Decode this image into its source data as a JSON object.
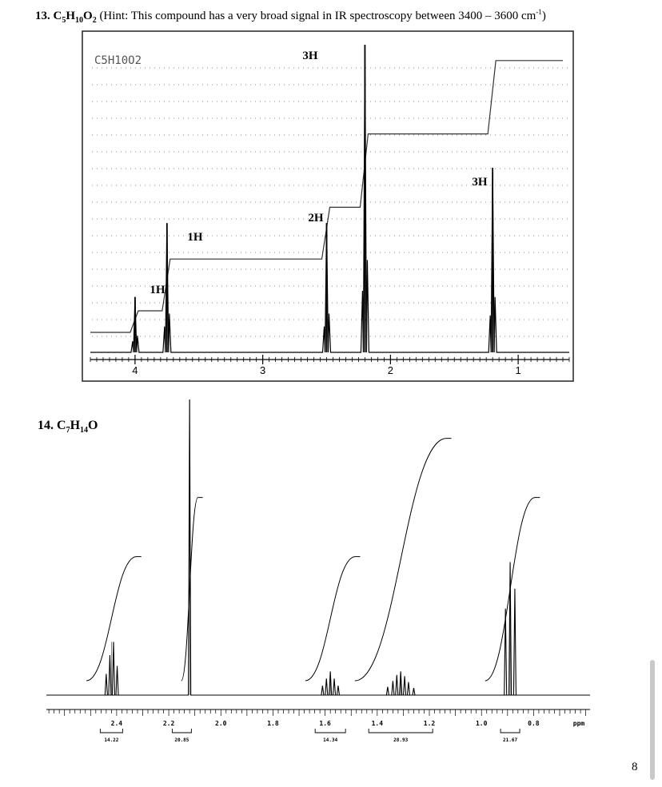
{
  "problem13": {
    "number": "13.",
    "formula_C": "C",
    "formula_C_sub": "5",
    "formula_H": "H",
    "formula_H_sub": "10",
    "formula_O": "O",
    "formula_O_sub": "2",
    "hint_text": " (Hint: This compound has a very broad signal in IR spectroscopy between 3400 – 3600 cm",
    "hint_sup": "-1",
    "hint_end": ")"
  },
  "problem14": {
    "number": "14.",
    "formula_C": "C",
    "formula_C_sub": "7",
    "formula_H": "H",
    "formula_H_sub": "14",
    "formula_O": "O"
  },
  "page_number": "8",
  "chart_data": [
    {
      "type": "line",
      "spectrum": "1H NMR",
      "sample_label": "C5H10O2",
      "xlim": [
        4.35,
        0.6
      ],
      "x_ticks": [
        "4",
        "3",
        "2",
        "1"
      ],
      "peaks": [
        {
          "shift": 4.0,
          "integration_label": "1H",
          "height": 0.18
        },
        {
          "shift": 3.75,
          "integration_label": "1H",
          "height": 0.42
        },
        {
          "shift": 2.5,
          "integration_label": "2H",
          "height": 0.42
        },
        {
          "shift": 2.2,
          "integration_label": "3H",
          "height": 1.0
        },
        {
          "shift": 1.2,
          "integration_label": "3H",
          "height": 0.6
        }
      ],
      "integration_steps": [
        0.0,
        0.1,
        0.34,
        0.58,
        0.92,
        1.26
      ]
    },
    {
      "type": "line",
      "spectrum": "1H NMR",
      "xlim": [
        2.55,
        0.7
      ],
      "x_ticks": [
        "2.4",
        "2.2",
        "2.0",
        "1.8",
        "1.6",
        "1.4",
        "1.2",
        "1.0",
        "0.8"
      ],
      "x_unit": "ppm",
      "peaks": [
        {
          "shift": 2.42,
          "height": 0.18
        },
        {
          "shift": 2.12,
          "height": 1.0
        },
        {
          "shift": 1.58,
          "height": 0.08
        },
        {
          "shift": 1.31,
          "height": 0.08
        },
        {
          "shift": 0.89,
          "height": 0.45
        }
      ],
      "integrals": [
        {
          "center": 2.42,
          "value": "14.22"
        },
        {
          "center": 2.15,
          "value": "20.85"
        },
        {
          "center": 1.58,
          "value": "14.34"
        },
        {
          "center": 1.31,
          "value": "28.93"
        },
        {
          "center": 0.89,
          "value": "21.67"
        }
      ]
    }
  ]
}
